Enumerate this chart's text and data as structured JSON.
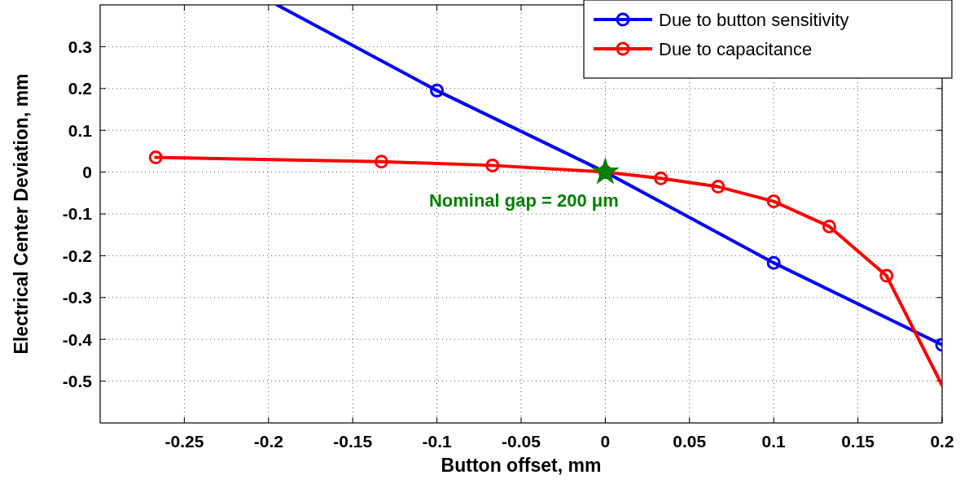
{
  "chart_data": {
    "type": "line",
    "xlabel": "Button offset, mm",
    "ylabel": "Electrical Center Deviation, mm",
    "xlim": [
      -0.3,
      0.2
    ],
    "ylim": [
      -0.6,
      0.4
    ],
    "xticks": [
      -0.25,
      -0.2,
      -0.15,
      -0.1,
      -0.05,
      0,
      0.05,
      0.1,
      0.15,
      0.2
    ],
    "yticks": [
      -0.5,
      -0.4,
      -0.3,
      -0.2,
      -0.1,
      0,
      0.1,
      0.2,
      0.3
    ],
    "grid": true,
    "legend": "top right",
    "marker": "circle",
    "line_style": "solid",
    "series": [
      {
        "name": "Due to button sensitivity",
        "color": "#0000ff",
        "x": [
          -0.1,
          0,
          0.1,
          0.2
        ],
        "values": [
          0.195,
          0,
          -0.217,
          -0.413
        ]
      },
      {
        "name": "Due to capacitance",
        "color": "#ff0000",
        "x": [
          -0.267,
          -0.133,
          -0.067,
          0,
          0.033,
          0.067,
          0.1,
          0.133,
          0.167
        ],
        "values": [
          0.035,
          0.025,
          0.016,
          0,
          -0.015,
          -0.035,
          -0.07,
          -0.13,
          -0.248
        ]
      },
      {
        "color": "#0000ff",
        "marker": "none",
        "x": [
          -0.195,
          -0.1
        ],
        "values": [
          0.4,
          0.195
        ]
      },
      {
        "color": "#ff0000",
        "marker": "none",
        "x": [
          0.167,
          0.2
        ],
        "values": [
          -0.248,
          -0.51
        ]
      },
      {
        "type": "scatter",
        "color": "#008000",
        "marker": "star",
        "x": [
          0
        ],
        "values": [
          0
        ]
      }
    ],
    "annotations": [
      {
        "text": "Nominal gap = 200 μm",
        "x": 0,
        "y": 0
      }
    ]
  }
}
